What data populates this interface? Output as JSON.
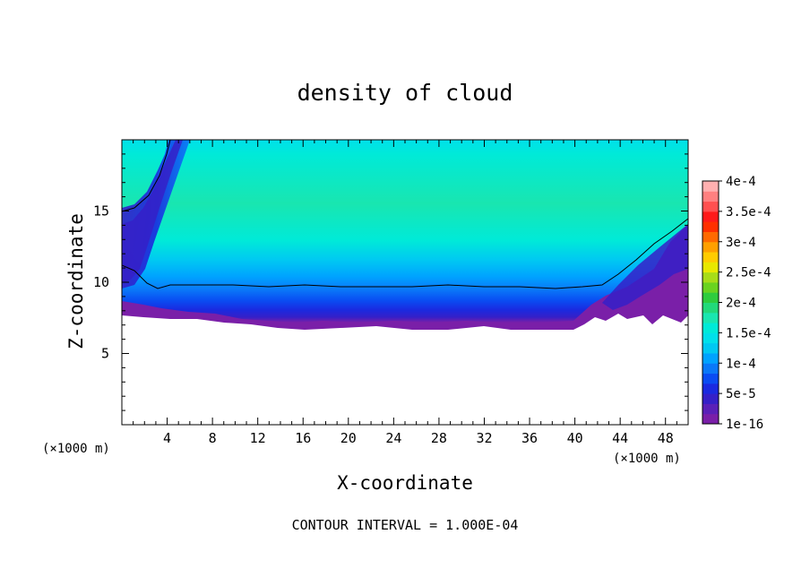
{
  "chart_data": {
    "type": "heatmap",
    "title": "density of cloud",
    "xlabel": "X-coordinate",
    "ylabel": "Z-coordinate",
    "x_unit": "(×1000 m)",
    "y_unit": "(×1000 m)",
    "xlim": [
      0,
      50
    ],
    "ylim": [
      0,
      20
    ],
    "x_ticks": [
      "4",
      "8",
      "12",
      "16",
      "20",
      "24",
      "28",
      "32",
      "36",
      "40",
      "44",
      "48"
    ],
    "y_ticks": [
      "5",
      "10",
      "15"
    ],
    "colorbar": {
      "labels": [
        "1e-16",
        "5e-5",
        "1e-4",
        "1.5e-4",
        "2e-4",
        "2.5e-4",
        "3e-4",
        "3.5e-4",
        "4e-4"
      ],
      "colors": [
        "#7a1fa8",
        "#5a20b8",
        "#3520c8",
        "#1a2ae0",
        "#0a4cf2",
        "#0a78f8",
        "#00a2ff",
        "#00c8f2",
        "#00e0ea",
        "#00ead8",
        "#19e6b0",
        "#22d97a",
        "#2ecc3e",
        "#6ad320",
        "#a8dc18",
        "#e8e800",
        "#ffcc00",
        "#ffa000",
        "#ff6a00",
        "#ff3000",
        "#ff1a1a",
        "#ff5050",
        "#ff8080",
        "#ffb0b0"
      ]
    },
    "contour_interval": "CONTOUR INTERVAL = 1.000E-04"
  }
}
